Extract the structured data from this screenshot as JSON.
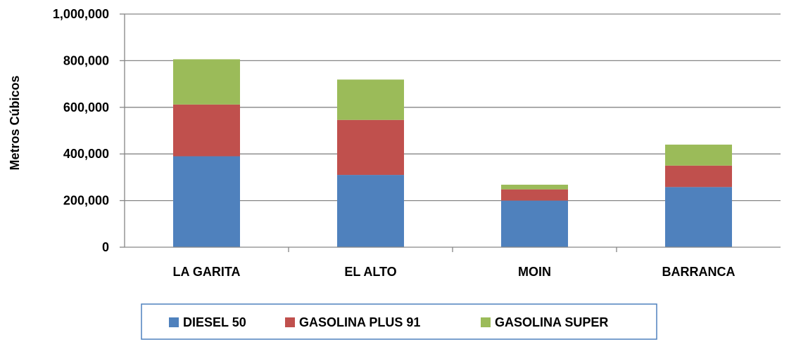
{
  "chart_data": {
    "type": "bar",
    "stacked": true,
    "categories": [
      "LA GARITA",
      "EL ALTO",
      "MOIN",
      "BARRANCA"
    ],
    "series": [
      {
        "name": "DIESEL 50",
        "values": [
          390000,
          310000,
          200000,
          258000
        ],
        "color": "#4F81BD"
      },
      {
        "name": "GASOLINA PLUS 91",
        "values": [
          222000,
          236000,
          48000,
          92000
        ],
        "color": "#C0504D"
      },
      {
        "name": "GASOLINA SUPER",
        "values": [
          194000,
          173000,
          20000,
          90000
        ],
        "color": "#9BBB59"
      }
    ],
    "ylabel": "Metros Cúbicos",
    "ylim": [
      0,
      1000000
    ],
    "yticks": [
      0,
      200000,
      400000,
      600000,
      800000,
      1000000
    ],
    "ytick_labels": [
      "0",
      "200,000",
      "400,000",
      "600,000",
      "800,000",
      "1,000,000"
    ],
    "grid": true,
    "legend_position": "bottom"
  }
}
